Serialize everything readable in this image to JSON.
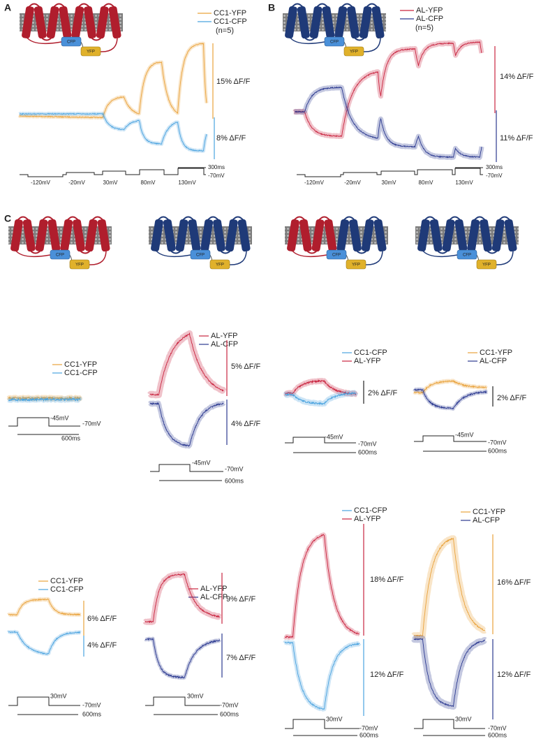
{
  "panel_labels": [
    "A",
    "B",
    "C"
  ],
  "fret_labels": [
    "CFP",
    "YFP"
  ],
  "panel_a": {
    "legend": [
      "CC1-YFP",
      "CC1-CFP"
    ],
    "n": "(n=5)",
    "scale_bars": [
      "15% ΔF/F",
      "8% ΔF/F"
    ],
    "voltages": [
      "-120mV",
      "-20mV",
      "30mV",
      "80mV",
      "130mV"
    ],
    "duration": "300ms",
    "holding": "-70mV"
  },
  "panel_b": {
    "legend": [
      "AL-YFP",
      "AL-CFP"
    ],
    "n": "(n=5)",
    "scale_bars": [
      "14% ΔF/F",
      "11% ΔF/F"
    ],
    "voltages": [
      "-120mV",
      "-20mV",
      "30mV",
      "80mV",
      "130mV"
    ],
    "duration": "300ms",
    "holding": "-70mV"
  },
  "panel_c": {
    "subplots": [
      {
        "legend": [
          "CC1-YFP",
          "CC1-CFP"
        ],
        "step": "-45mV",
        "holding": "-70mV",
        "duration": "600ms"
      },
      {
        "legend": [
          "AL-YFP",
          "AL-CFP"
        ],
        "scale_bars": [
          "5% ΔF/F",
          "4% ΔF/F"
        ],
        "step": "-45mV",
        "holding": "-70mV",
        "duration": "600ms"
      },
      {
        "legend": [
          "CC1-CFP",
          "AL-YFP"
        ],
        "scale_bars": [
          "2% ΔF/F"
        ],
        "step": "-45mV",
        "holding": "-70mV",
        "duration": "600ms"
      },
      {
        "legend": [
          "CC1-YFP",
          "AL-CFP"
        ],
        "scale_bars": [
          "2% ΔF/F"
        ],
        "step": "-45mV",
        "holding": "-70mV",
        "duration": "600ms"
      },
      {
        "legend": [
          "CC1-YFP",
          "CC1-CFP"
        ],
        "scale_bars": [
          "6% ΔF/F",
          "4% ΔF/F"
        ],
        "step": "30mV",
        "holding": "-70mV",
        "duration": "600ms"
      },
      {
        "legend": [
          "AL-YFP",
          "AL-CFP"
        ],
        "scale_bars": [
          "9% ΔF/F",
          "7% ΔF/F"
        ],
        "step": "30mV",
        "holding": "-70mV",
        "duration": "600ms"
      },
      {
        "legend": [
          "CC1-CFP",
          "AL-YFP"
        ],
        "scale_bars": [
          "18% ΔF/F",
          "12% ΔF/F"
        ],
        "step": "30mV",
        "holding": "-70mV",
        "duration": "600ms"
      },
      {
        "legend": [
          "CC1-YFP",
          "AL-CFP"
        ],
        "scale_bars": [
          "16% ΔF/F",
          "12% ΔF/F"
        ],
        "step": "30mV",
        "holding": "-70mV",
        "duration": "600ms"
      }
    ]
  }
}
